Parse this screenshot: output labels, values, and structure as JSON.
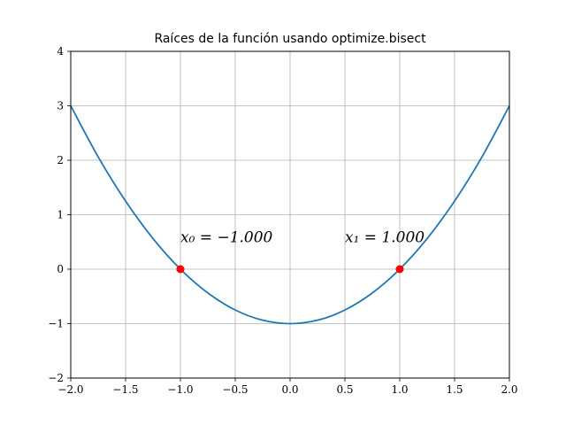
{
  "chart_data": {
    "type": "line",
    "title": "Raíces de la función usando optimize.bisect",
    "xlabel": "",
    "ylabel": "",
    "xlim": [
      -2,
      2
    ],
    "ylim": [
      -2,
      4
    ],
    "grid": true,
    "x_ticks": [
      -2.0,
      -1.5,
      -1.0,
      -0.5,
      0.0,
      0.5,
      1.0,
      1.5,
      2.0
    ],
    "x_tick_labels": [
      "−2.0",
      "−1.5",
      "−1.0",
      "−0.5",
      "0.0",
      "0.5",
      "1.0",
      "1.5",
      "2.0"
    ],
    "y_ticks": [
      -2,
      -1,
      0,
      1,
      2,
      3,
      4
    ],
    "y_tick_labels": [
      "−2",
      "−1",
      "0",
      "1",
      "2",
      "3",
      "4"
    ],
    "series": [
      {
        "color": "#1f77b4",
        "x": [
          -2.0,
          -1.75,
          -1.5,
          -1.25,
          -1.0,
          -0.75,
          -0.5,
          -0.25,
          0.0,
          0.25,
          0.5,
          0.75,
          1.0,
          1.25,
          1.5,
          1.75,
          2.0
        ],
        "y": [
          3.0,
          2.0625,
          1.25,
          0.5625,
          0.0,
          -0.4375,
          -0.75,
          -0.9375,
          -1.0,
          -0.9375,
          -0.75,
          -0.4375,
          0.0,
          0.5625,
          1.25,
          2.0625,
          3.0
        ]
      }
    ],
    "roots": [
      {
        "x": -1.0,
        "y": 0.0,
        "color": "#ff0000"
      },
      {
        "x": 1.0,
        "y": 0.0,
        "color": "#ff0000"
      }
    ],
    "annotations": [
      {
        "text": "x₀ = −1.000",
        "x": -1.0,
        "y": 0.5
      },
      {
        "text": "x₁ = 1.000",
        "x": 0.5,
        "y": 0.5
      }
    ]
  }
}
